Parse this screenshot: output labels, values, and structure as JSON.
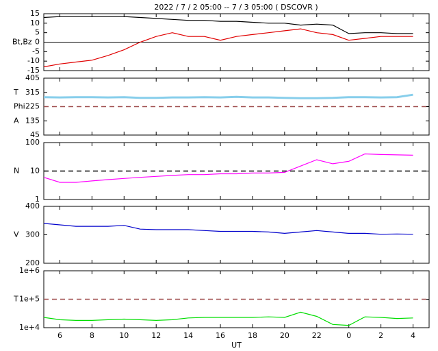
{
  "chart_data": [
    {
      "type": "line",
      "title": "2022 /  7 /  2   05:00 --  7 /  3   05:00 ( DSCOVR )",
      "ylabel": "Bt,Bz",
      "x": [
        5,
        6,
        7,
        8,
        9,
        10,
        11,
        12,
        13,
        14,
        15,
        16,
        17,
        18,
        19,
        20,
        21,
        22,
        23,
        24,
        25,
        26,
        27,
        28
      ],
      "series": [
        {
          "name": "Bt",
          "color": "#000000",
          "values": [
            13,
            13.5,
            13.5,
            13.5,
            13.5,
            13.5,
            13,
            12.5,
            12,
            11.5,
            11.5,
            11,
            11,
            10.5,
            10,
            10,
            9,
            9.5,
            9,
            4.5,
            5,
            5,
            4.5,
            4.5
          ]
        },
        {
          "name": "Bz",
          "color": "#e00000",
          "values": [
            -13,
            -11.5,
            -10.5,
            -9.5,
            -7,
            -4,
            0,
            3,
            5,
            3,
            3,
            1,
            3,
            4,
            5,
            6,
            7,
            5,
            4,
            1,
            2,
            3,
            3,
            3
          ]
        }
      ],
      "ylim": [
        -15,
        15
      ],
      "yticks": [
        15,
        10,
        5,
        0,
        -5,
        -10,
        -15
      ],
      "log": false,
      "hline": {
        "value": 0,
        "color": "#000000",
        "style": "solid"
      }
    },
    {
      "type": "line",
      "ylabel": [
        "T",
        "Phi",
        "A"
      ],
      "x": [
        5,
        6,
        7,
        8,
        9,
        10,
        11,
        12,
        13,
        14,
        15,
        16,
        17,
        18,
        19,
        20,
        21,
        22,
        23,
        24,
        25,
        26,
        27,
        28
      ],
      "series": [
        {
          "name": "Phi",
          "color": "#87ceeb",
          "values": [
            285,
            283,
            285,
            285,
            283,
            285,
            280,
            280,
            283,
            283,
            285,
            283,
            287,
            283,
            283,
            280,
            278,
            278,
            280,
            285,
            285,
            283,
            285,
            300
          ]
        }
      ],
      "ylim": [
        45,
        405
      ],
      "yticks": [
        405,
        315,
        225,
        135,
        45
      ],
      "log": false,
      "hline": {
        "value": 225,
        "color": "#a05050",
        "style": "dashed"
      }
    },
    {
      "type": "line",
      "ylabel": "N",
      "x": [
        5,
        6,
        7,
        8,
        9,
        10,
        11,
        12,
        13,
        14,
        15,
        16,
        17,
        18,
        19,
        20,
        21,
        22,
        23,
        24,
        25,
        26,
        27,
        28
      ],
      "series": [
        {
          "name": "N",
          "color": "#ff00ff",
          "values": [
            6,
            4,
            4,
            4.5,
            5,
            5.5,
            6,
            6.5,
            7,
            7.5,
            7.5,
            8,
            8,
            8.5,
            8.5,
            9,
            15,
            25,
            18,
            22,
            40,
            38,
            37,
            36
          ]
        }
      ],
      "ylim": [
        1,
        100
      ],
      "yticks": [
        100,
        10,
        1
      ],
      "log": true,
      "hline": {
        "value": 10,
        "color": "#000000",
        "style": "dashed"
      }
    },
    {
      "type": "line",
      "ylabel": "V",
      "x": [
        5,
        6,
        7,
        8,
        9,
        10,
        11,
        12,
        13,
        14,
        15,
        16,
        17,
        18,
        19,
        20,
        21,
        22,
        23,
        24,
        25,
        26,
        27,
        28
      ],
      "series": [
        {
          "name": "V",
          "color": "#0000cc",
          "values": [
            340,
            335,
            330,
            330,
            330,
            333,
            320,
            318,
            318,
            318,
            315,
            312,
            312,
            312,
            310,
            305,
            310,
            315,
            310,
            305,
            305,
            302,
            303,
            302
          ]
        }
      ],
      "ylim": [
        200,
        400
      ],
      "yticks": [
        400,
        300,
        200
      ],
      "log": false
    },
    {
      "type": "line",
      "ylabel": "T",
      "xlabel": "UT",
      "x": [
        5,
        6,
        7,
        8,
        9,
        10,
        11,
        12,
        13,
        14,
        15,
        16,
        17,
        18,
        19,
        20,
        21,
        22,
        23,
        24,
        25,
        26,
        27,
        28
      ],
      "series": [
        {
          "name": "T",
          "color": "#00dd00",
          "values": [
            23000,
            19000,
            18000,
            18000,
            19000,
            20000,
            19000,
            18000,
            19000,
            22000,
            23000,
            23000,
            23000,
            23000,
            24000,
            23000,
            35000,
            25000,
            13000,
            12000,
            24000,
            23000,
            21000,
            22000
          ]
        }
      ],
      "ylim": [
        10000,
        1000000
      ],
      "yticks": [
        {
          "value": 1000000,
          "label": "1e+6"
        },
        {
          "value": 100000,
          "label": "1e+5"
        },
        {
          "value": 10000,
          "label": "1e+4"
        }
      ],
      "log": true,
      "hline": {
        "value": 100000,
        "color": "#a05050",
        "style": "dashed"
      },
      "xlim": [
        5,
        29
      ],
      "xticks": [
        6,
        8,
        10,
        12,
        14,
        16,
        18,
        20,
        22,
        {
          "value": 24,
          "label": "0"
        },
        {
          "value": 26,
          "label": "2"
        },
        {
          "value": 28,
          "label": "4"
        }
      ]
    }
  ]
}
